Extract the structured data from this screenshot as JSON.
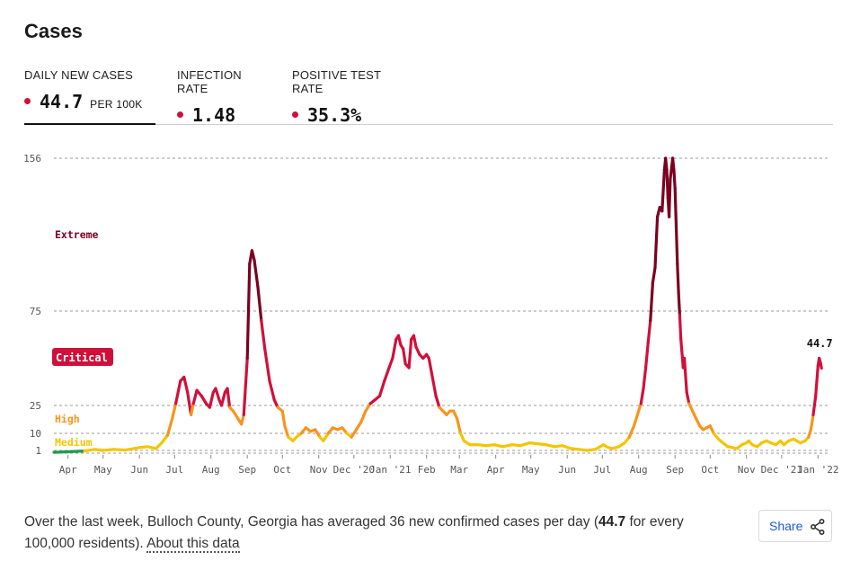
{
  "header": {
    "title": "Cases"
  },
  "tabs": [
    {
      "label": "DAILY NEW CASES",
      "value": "44.7",
      "unit": "PER 100K",
      "active": true
    },
    {
      "label": "INFECTION RATE",
      "value": "1.48",
      "unit": "",
      "active": false
    },
    {
      "label": "POSITIVE TEST RATE",
      "value": "35.3%",
      "unit": "",
      "active": false
    }
  ],
  "colors": {
    "extreme": "#7a0020",
    "critical": "#d0103a",
    "high": "#f7941d",
    "medium": "#f5c400",
    "low": "#1e9c4a",
    "dot": "#d0103a"
  },
  "chart_data": {
    "type": "line",
    "x_axis": "date",
    "y_ticks": [
      1,
      10,
      25,
      75,
      156
    ],
    "ylim": [
      0,
      156
    ],
    "xlim": [
      "2020-03-20",
      "2022-01-10"
    ],
    "risk_levels": [
      {
        "name": "Extreme",
        "min": 75
      },
      {
        "name": "Critical",
        "min": 25
      },
      {
        "name": "High",
        "min": 10
      },
      {
        "name": "Medium",
        "min": 1
      }
    ],
    "x_ticks": [
      {
        "label": "Apr",
        "date": "2020-04-01"
      },
      {
        "label": "May",
        "date": "2020-05-01"
      },
      {
        "label": "Jun",
        "date": "2020-06-01"
      },
      {
        "label": "Jul",
        "date": "2020-07-01"
      },
      {
        "label": "Aug",
        "date": "2020-08-01"
      },
      {
        "label": "Sep",
        "date": "2020-09-01"
      },
      {
        "label": "Oct",
        "date": "2020-10-01"
      },
      {
        "label": "Nov",
        "date": "2020-11-01"
      },
      {
        "label": "Dec '20",
        "date": "2020-12-01"
      },
      {
        "label": "Jan '21",
        "date": "2021-01-01"
      },
      {
        "label": "Feb",
        "date": "2021-02-01"
      },
      {
        "label": "Mar",
        "date": "2021-03-01"
      },
      {
        "label": "Apr",
        "date": "2021-04-01"
      },
      {
        "label": "May",
        "date": "2021-05-01"
      },
      {
        "label": "Jun",
        "date": "2021-06-01"
      },
      {
        "label": "Jul",
        "date": "2021-07-01"
      },
      {
        "label": "Aug",
        "date": "2021-08-01"
      },
      {
        "label": "Sep",
        "date": "2021-09-01"
      },
      {
        "label": "Oct",
        "date": "2021-10-01"
      },
      {
        "label": "Nov",
        "date": "2021-11-01"
      },
      {
        "label": "Dec '21",
        "date": "2021-12-01"
      },
      {
        "label": "Jan '22",
        "date": "2022-01-01"
      }
    ],
    "series": [
      {
        "values": [
          [
            "2020-03-20",
            0.3
          ],
          [
            "2020-04-01",
            0.5
          ],
          [
            "2020-04-15",
            0.8
          ],
          [
            "2020-04-24",
            1.5
          ],
          [
            "2020-05-01",
            1.0
          ],
          [
            "2020-05-10",
            1.5
          ],
          [
            "2020-05-20",
            1.2
          ],
          [
            "2020-06-01",
            2.5
          ],
          [
            "2020-06-08",
            3
          ],
          [
            "2020-06-15",
            2
          ],
          [
            "2020-06-20",
            5
          ],
          [
            "2020-06-25",
            9
          ],
          [
            "2020-06-29",
            18
          ],
          [
            "2020-07-02",
            26
          ],
          [
            "2020-07-06",
            38
          ],
          [
            "2020-07-09",
            40
          ],
          [
            "2020-07-12",
            32
          ],
          [
            "2020-07-15",
            20
          ],
          [
            "2020-07-17",
            26
          ],
          [
            "2020-07-20",
            33
          ],
          [
            "2020-07-24",
            30
          ],
          [
            "2020-07-28",
            26
          ],
          [
            "2020-07-31",
            24
          ],
          [
            "2020-08-03",
            32
          ],
          [
            "2020-08-05",
            34
          ],
          [
            "2020-08-08",
            28
          ],
          [
            "2020-08-10",
            25
          ],
          [
            "2020-08-13",
            32
          ],
          [
            "2020-08-15",
            34
          ],
          [
            "2020-08-17",
            24
          ],
          [
            "2020-08-20",
            22
          ],
          [
            "2020-08-24",
            18
          ],
          [
            "2020-08-27",
            15
          ],
          [
            "2020-08-29",
            20
          ],
          [
            "2020-09-01",
            50
          ],
          [
            "2020-09-03",
            100
          ],
          [
            "2020-09-05",
            107
          ],
          [
            "2020-09-07",
            102
          ],
          [
            "2020-09-10",
            88
          ],
          [
            "2020-09-13",
            70
          ],
          [
            "2020-09-16",
            55
          ],
          [
            "2020-09-20",
            38
          ],
          [
            "2020-09-24",
            28
          ],
          [
            "2020-09-27",
            24
          ],
          [
            "2020-10-01",
            22
          ],
          [
            "2020-10-03",
            14
          ],
          [
            "2020-10-06",
            8
          ],
          [
            "2020-10-10",
            6
          ],
          [
            "2020-10-13",
            8
          ],
          [
            "2020-10-17",
            10
          ],
          [
            "2020-10-21",
            13
          ],
          [
            "2020-10-25",
            11
          ],
          [
            "2020-10-29",
            12
          ],
          [
            "2020-11-02",
            8
          ],
          [
            "2020-11-05",
            6
          ],
          [
            "2020-11-09",
            10
          ],
          [
            "2020-11-13",
            13
          ],
          [
            "2020-11-17",
            12
          ],
          [
            "2020-11-21",
            13
          ],
          [
            "2020-11-25",
            10
          ],
          [
            "2020-11-29",
            8
          ],
          [
            "2020-12-03",
            12
          ],
          [
            "2020-12-07",
            16
          ],
          [
            "2020-12-11",
            22
          ],
          [
            "2020-12-15",
            26
          ],
          [
            "2020-12-19",
            28
          ],
          [
            "2020-12-23",
            30
          ],
          [
            "2020-12-27",
            38
          ],
          [
            "2020-12-31",
            45
          ],
          [
            "2021-01-03",
            50
          ],
          [
            "2021-01-06",
            60
          ],
          [
            "2021-01-08",
            62
          ],
          [
            "2021-01-10",
            57
          ],
          [
            "2021-01-12",
            55
          ],
          [
            "2021-01-14",
            47
          ],
          [
            "2021-01-17",
            45
          ],
          [
            "2021-01-19",
            60
          ],
          [
            "2021-01-21",
            62
          ],
          [
            "2021-01-23",
            56
          ],
          [
            "2021-01-26",
            52
          ],
          [
            "2021-01-29",
            50
          ],
          [
            "2021-02-01",
            52
          ],
          [
            "2021-02-03",
            50
          ],
          [
            "2021-02-06",
            40
          ],
          [
            "2021-02-09",
            30
          ],
          [
            "2021-02-12",
            24
          ],
          [
            "2021-02-15",
            22
          ],
          [
            "2021-02-18",
            20
          ],
          [
            "2021-02-21",
            22
          ],
          [
            "2021-02-24",
            22
          ],
          [
            "2021-02-27",
            18
          ],
          [
            "2021-03-02",
            10
          ],
          [
            "2021-03-05",
            6
          ],
          [
            "2021-03-10",
            4
          ],
          [
            "2021-03-17",
            4
          ],
          [
            "2021-03-24",
            3.5
          ],
          [
            "2021-03-31",
            4
          ],
          [
            "2021-04-07",
            3
          ],
          [
            "2021-04-15",
            4
          ],
          [
            "2021-04-22",
            3.5
          ],
          [
            "2021-04-30",
            5
          ],
          [
            "2021-05-07",
            4.5
          ],
          [
            "2021-05-14",
            4
          ],
          [
            "2021-05-21",
            3
          ],
          [
            "2021-05-28",
            3.5
          ],
          [
            "2021-06-04",
            2
          ],
          [
            "2021-06-11",
            1.5
          ],
          [
            "2021-06-18",
            1
          ],
          [
            "2021-06-25",
            1.5
          ],
          [
            "2021-07-02",
            4
          ],
          [
            "2021-07-06",
            2.5
          ],
          [
            "2021-07-10",
            2
          ],
          [
            "2021-07-15",
            3
          ],
          [
            "2021-07-20",
            5
          ],
          [
            "2021-07-24",
            8
          ],
          [
            "2021-07-28",
            14
          ],
          [
            "2021-07-31",
            20
          ],
          [
            "2021-08-03",
            26
          ],
          [
            "2021-08-05",
            34
          ],
          [
            "2021-08-07",
            45
          ],
          [
            "2021-08-09",
            58
          ],
          [
            "2021-08-11",
            70
          ],
          [
            "2021-08-13",
            90
          ],
          [
            "2021-08-15",
            98
          ],
          [
            "2021-08-17",
            125
          ],
          [
            "2021-08-19",
            130
          ],
          [
            "2021-08-21",
            128
          ],
          [
            "2021-08-23",
            150
          ],
          [
            "2021-08-24",
            156
          ],
          [
            "2021-08-25",
            150
          ],
          [
            "2021-08-26",
            135
          ],
          [
            "2021-08-27",
            125
          ],
          [
            "2021-08-28",
            145
          ],
          [
            "2021-08-30",
            156
          ],
          [
            "2021-08-31",
            150
          ],
          [
            "2021-09-01",
            140
          ],
          [
            "2021-09-02",
            120
          ],
          [
            "2021-09-03",
            100
          ],
          [
            "2021-09-04",
            85
          ],
          [
            "2021-09-05",
            73
          ],
          [
            "2021-09-06",
            60
          ],
          [
            "2021-09-08",
            45
          ],
          [
            "2021-09-09",
            50
          ],
          [
            "2021-09-11",
            32
          ],
          [
            "2021-09-13",
            26
          ],
          [
            "2021-09-16",
            22
          ],
          [
            "2021-09-19",
            18
          ],
          [
            "2021-09-22",
            14
          ],
          [
            "2021-09-25",
            12
          ],
          [
            "2021-09-28",
            13
          ],
          [
            "2021-10-01",
            14
          ],
          [
            "2021-10-04",
            10
          ],
          [
            "2021-10-08",
            7
          ],
          [
            "2021-10-12",
            5
          ],
          [
            "2021-10-16",
            3
          ],
          [
            "2021-10-20",
            2.5
          ],
          [
            "2021-10-24",
            2
          ],
          [
            "2021-10-28",
            4
          ],
          [
            "2021-11-01",
            5
          ],
          [
            "2021-11-03",
            6
          ],
          [
            "2021-11-06",
            4
          ],
          [
            "2021-11-10",
            3
          ],
          [
            "2021-11-14",
            5
          ],
          [
            "2021-11-18",
            6
          ],
          [
            "2021-11-22",
            5
          ],
          [
            "2021-11-26",
            4
          ],
          [
            "2021-11-30",
            6
          ],
          [
            "2021-12-03",
            4
          ],
          [
            "2021-12-07",
            6
          ],
          [
            "2021-12-11",
            7
          ],
          [
            "2021-12-14",
            6
          ],
          [
            "2021-12-17",
            5
          ],
          [
            "2021-12-21",
            6
          ],
          [
            "2021-12-24",
            8
          ],
          [
            "2021-12-26",
            12
          ],
          [
            "2021-12-28",
            20
          ],
          [
            "2021-12-30",
            30
          ],
          [
            "2021-12-31",
            38
          ],
          [
            "2022-01-01",
            46
          ],
          [
            "2022-01-02",
            50
          ],
          [
            "2022-01-03",
            48
          ],
          [
            "2022-01-04",
            44.7
          ]
        ]
      }
    ],
    "last_value_label": "44.7"
  },
  "footer": {
    "text_before": "Over the last week, Bulloch County, Georgia has averaged 36 new confirmed cases per day (",
    "highlight": "44.7",
    "text_after": " for every 100,000 residents).",
    "link": "About this data"
  },
  "share": {
    "label": "Share",
    "icon": "share-icon"
  }
}
